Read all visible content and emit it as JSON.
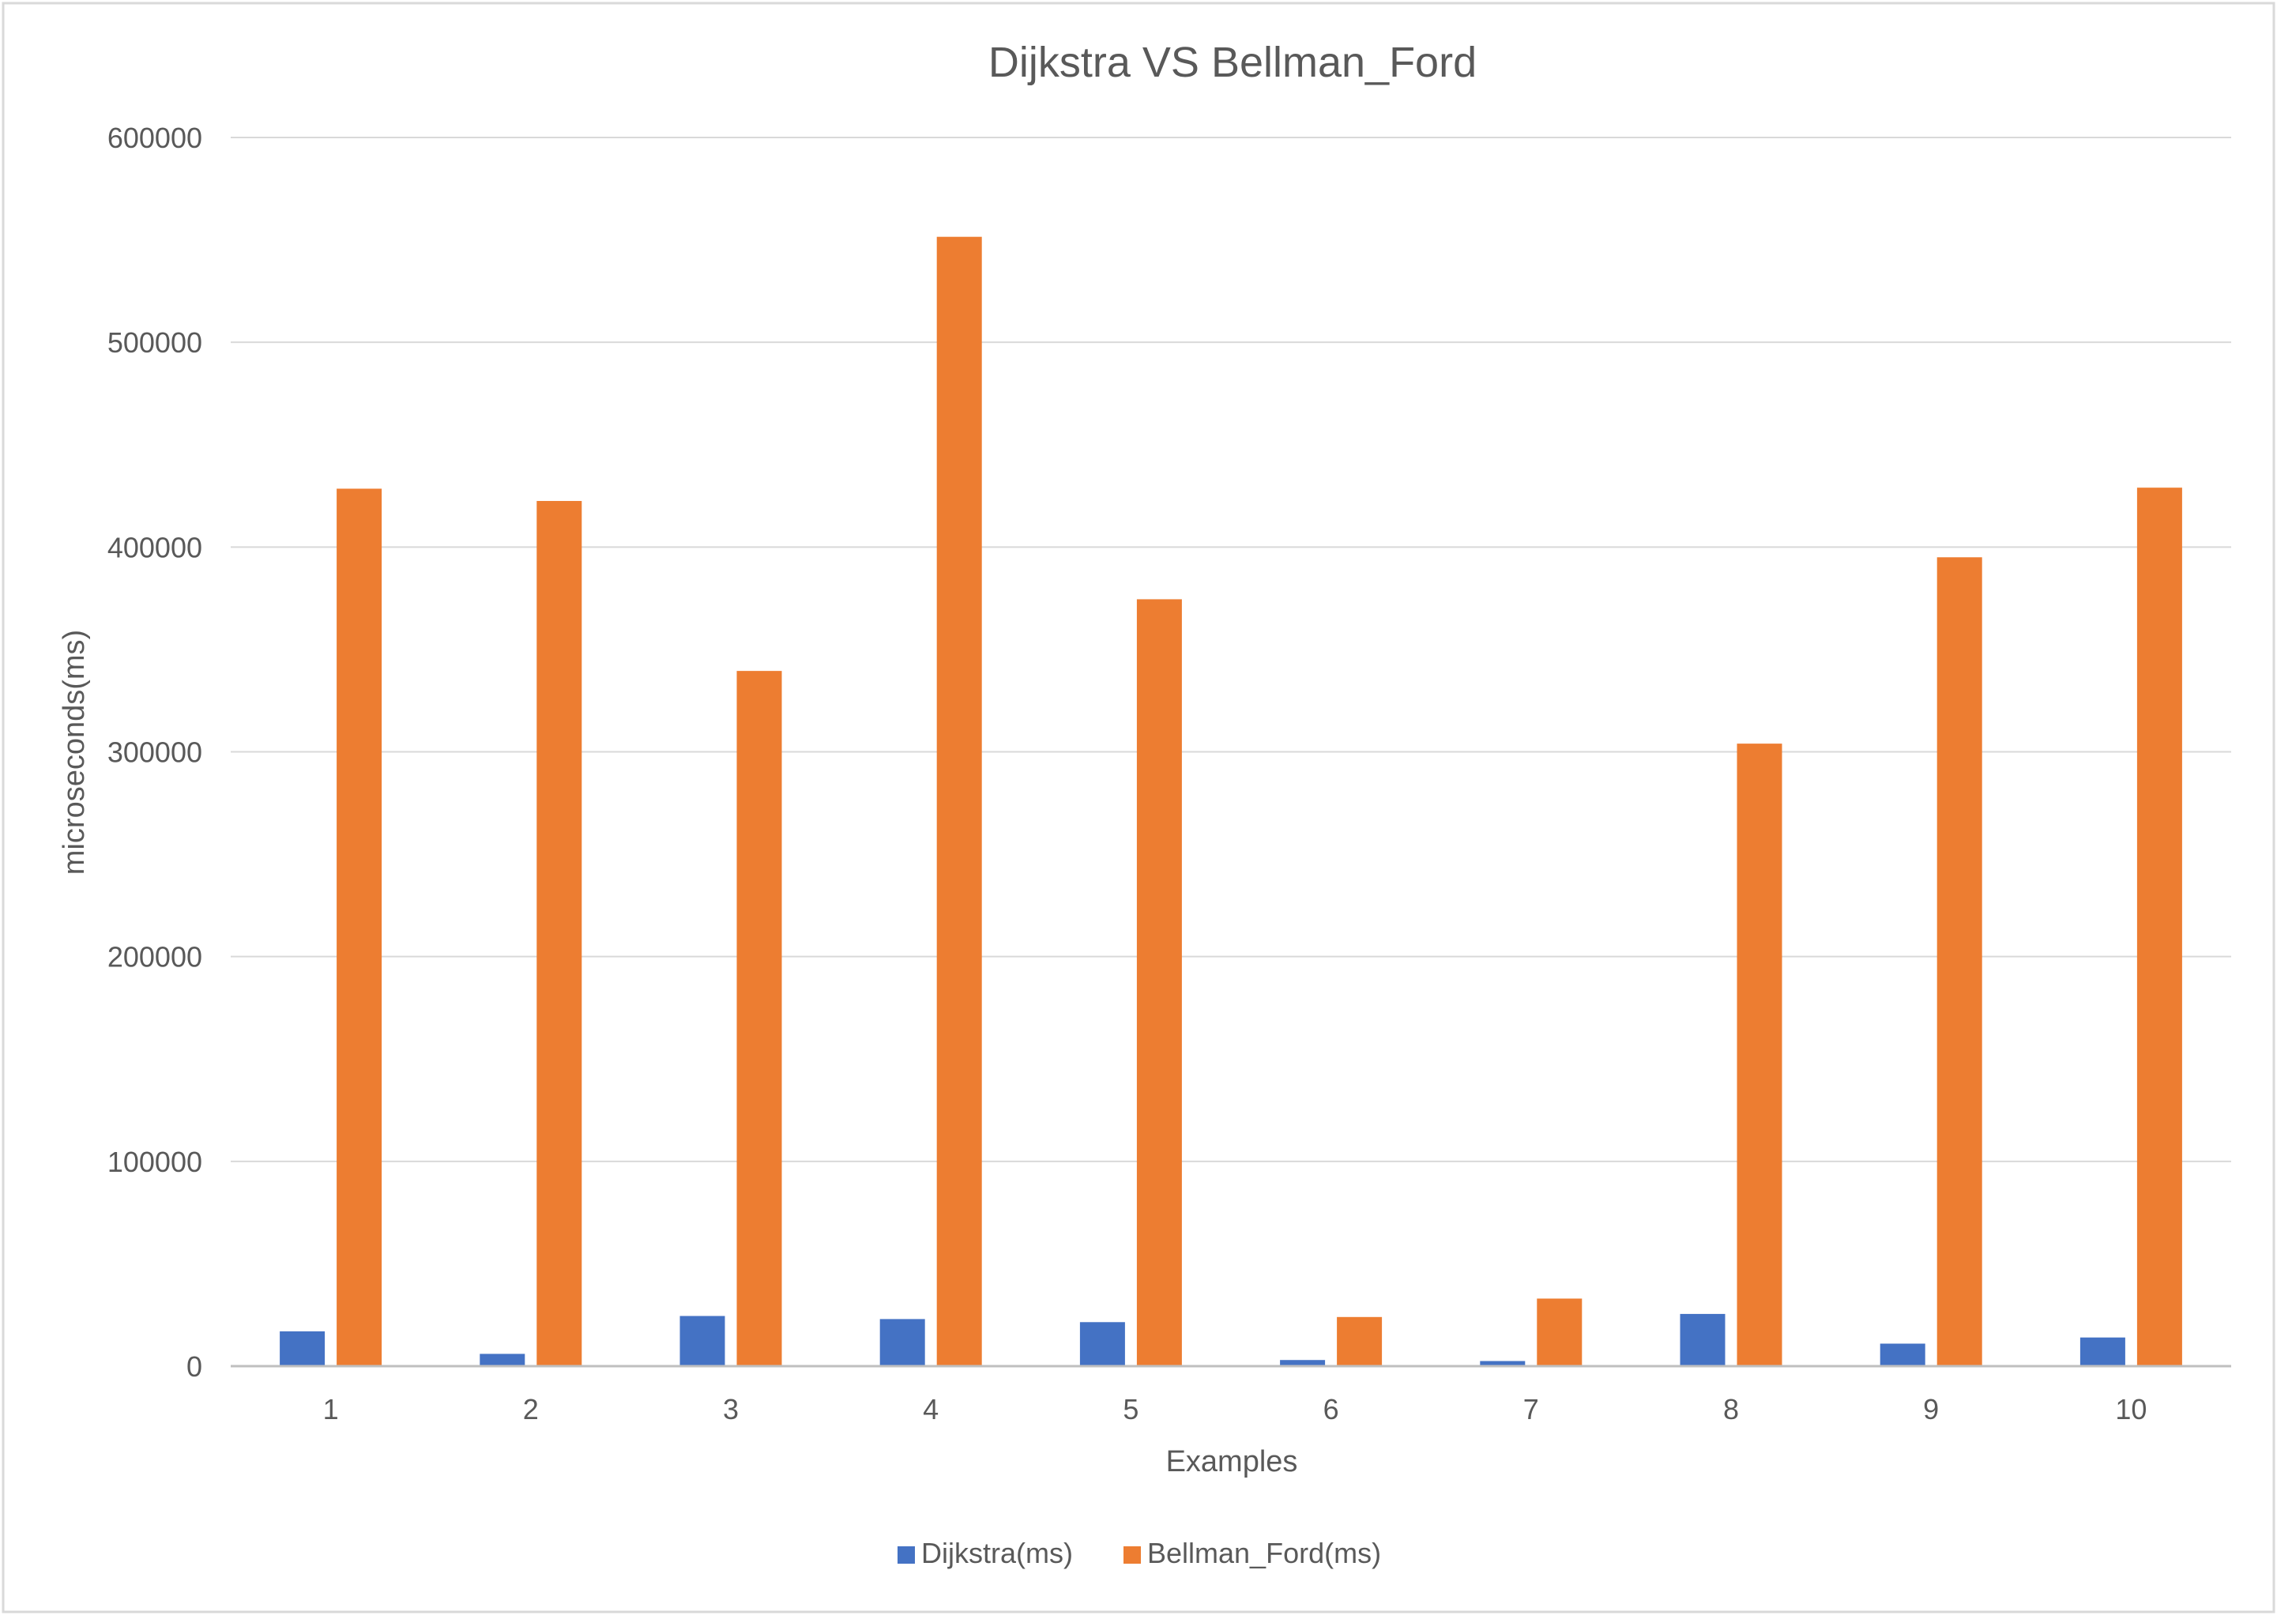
{
  "chart_data": {
    "type": "bar",
    "title": "Dijkstra VS Bellman_Ford",
    "xlabel": "Examples",
    "ylabel": "microseconds(ms)",
    "categories": [
      "1",
      "2",
      "3",
      "4",
      "5",
      "6",
      "7",
      "8",
      "9",
      "10"
    ],
    "series": [
      {
        "name": "Dijkstra(ms)",
        "color": "#4472C4",
        "values": [
          17000,
          6000,
          24500,
          23000,
          21500,
          3000,
          2500,
          25500,
          11000,
          14000
        ]
      },
      {
        "name": "Bellman_Ford(ms)",
        "color": "#ED7D31",
        "values": [
          428500,
          422500,
          339500,
          551500,
          374500,
          24000,
          33000,
          304000,
          395000,
          429000
        ]
      }
    ],
    "ylim": [
      0,
      600000
    ],
    "yticks": [
      0,
      100000,
      200000,
      300000,
      400000,
      500000,
      600000
    ],
    "grid": true,
    "legend_position": "bottom"
  }
}
